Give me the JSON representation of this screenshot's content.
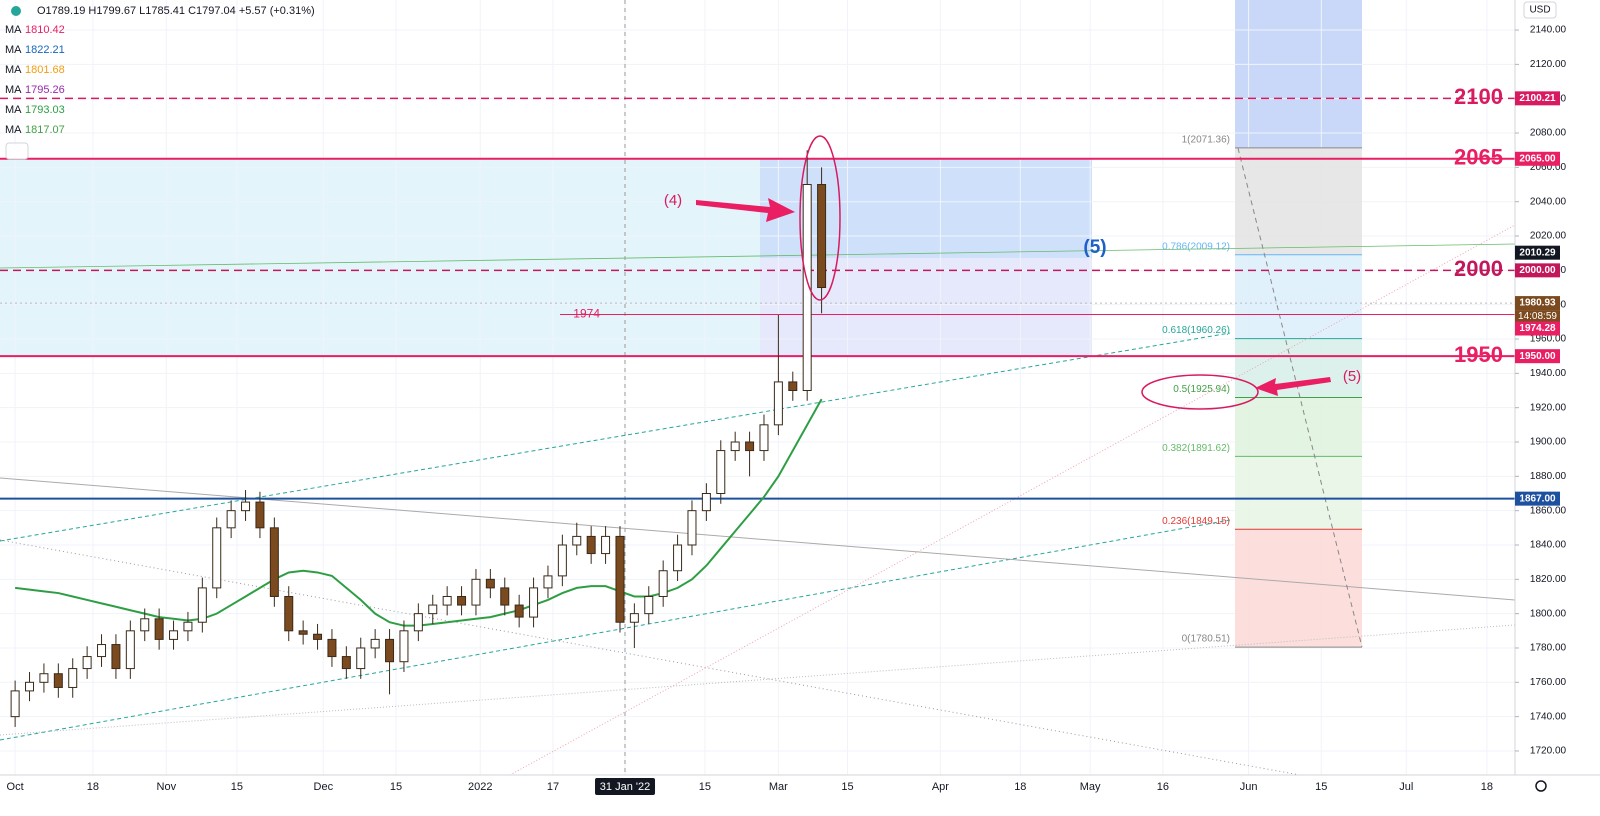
{
  "header": {
    "ohlc": "O1789.19 H1799.67 L1785.41 C1797.04 +5.57 (+0.31%)",
    "ma": [
      {
        "name": "MA",
        "value": 1810.42,
        "color": "#e91e63"
      },
      {
        "name": "MA",
        "value": 1822.21,
        "color": "#1565c0"
      },
      {
        "name": "MA",
        "value": 1801.68,
        "color": "#f39c12"
      },
      {
        "name": "MA",
        "value": 1795.26,
        "color": "#9c27b0"
      },
      {
        "name": "MA",
        "value": 1793.03,
        "color": "#2e9e44"
      },
      {
        "name": "MA",
        "value": 1817.07,
        "color": "#43a047"
      }
    ],
    "currency": "USD"
  },
  "chart_data": {
    "type": "candlestick",
    "x": [
      0,
      2,
      4,
      6,
      8,
      10,
      12,
      14,
      16,
      18,
      20,
      22,
      24,
      26,
      28,
      30,
      32,
      34,
      36,
      38,
      40,
      42,
      44,
      46,
      48,
      50,
      52,
      54,
      56,
      58,
      60,
      62,
      64,
      66,
      68,
      70,
      72,
      74,
      76,
      78,
      80,
      82,
      84,
      86,
      88,
      90,
      92,
      94,
      96,
      98,
      100,
      102,
      104,
      106,
      108,
      110,
      112
    ],
    "open": [
      1740,
      1755,
      1760,
      1765,
      1757,
      1768,
      1775,
      1782,
      1768,
      1790,
      1797,
      1785,
      1790,
      1795,
      1815,
      1850,
      1860,
      1865,
      1850,
      1810,
      1790,
      1788,
      1785,
      1775,
      1768,
      1780,
      1785,
      1772,
      1790,
      1800,
      1805,
      1810,
      1805,
      1820,
      1815,
      1805,
      1798,
      1815,
      1822,
      1840,
      1845,
      1835,
      1845,
      1795,
      1800,
      1810,
      1825,
      1840,
      1860,
      1870,
      1895,
      1900,
      1895,
      1910,
      1935,
      1930,
      2050
    ],
    "high": [
      1761,
      1766,
      1771,
      1771,
      1774,
      1781,
      1788,
      1788,
      1796,
      1803,
      1803,
      1796,
      1801,
      1821,
      1856,
      1866,
      1872,
      1871,
      1856,
      1816,
      1796,
      1794,
      1791,
      1781,
      1786,
      1791,
      1791,
      1796,
      1806,
      1811,
      1816,
      1816,
      1826,
      1826,
      1821,
      1811,
      1821,
      1828,
      1846,
      1853,
      1851,
      1851,
      1851,
      1806,
      1816,
      1831,
      1846,
      1866,
      1876,
      1901,
      1906,
      1906,
      1916,
      1974,
      1941,
      2070,
      2060
    ],
    "low": [
      1734,
      1749,
      1754,
      1751,
      1751,
      1762,
      1769,
      1762,
      1762,
      1784,
      1779,
      1779,
      1784,
      1789,
      1809,
      1844,
      1854,
      1844,
      1804,
      1784,
      1782,
      1779,
      1769,
      1762,
      1762,
      1774,
      1753,
      1766,
      1784,
      1794,
      1799,
      1799,
      1799,
      1809,
      1799,
      1792,
      1792,
      1809,
      1816,
      1834,
      1829,
      1829,
      1789,
      1780,
      1794,
      1804,
      1819,
      1834,
      1854,
      1864,
      1889,
      1880,
      1889,
      1904,
      1924,
      1924,
      1975
    ],
    "close": [
      1755,
      1760,
      1765,
      1757,
      1768,
      1775,
      1782,
      1768,
      1790,
      1797,
      1785,
      1790,
      1795,
      1815,
      1850,
      1860,
      1865,
      1850,
      1810,
      1790,
      1788,
      1785,
      1775,
      1768,
      1780,
      1785,
      1772,
      1790,
      1800,
      1805,
      1810,
      1805,
      1820,
      1815,
      1805,
      1798,
      1815,
      1822,
      1840,
      1845,
      1835,
      1845,
      1795,
      1800,
      1810,
      1825,
      1840,
      1860,
      1870,
      1895,
      1900,
      1895,
      1910,
      1935,
      1930,
      2050,
      1990
    ],
    "color_up": "#ffffff",
    "color_down": "#7b4a1e",
    "ma_series": [
      {
        "color": "#2e9e44",
        "values": [
          1815,
          1814,
          1813,
          1812,
          1810,
          1808,
          1806,
          1804,
          1802,
          1800,
          1798,
          1797,
          1796,
          1797,
          1800,
          1805,
          1810,
          1815,
          1820,
          1824,
          1825,
          1824,
          1822,
          1815,
          1808,
          1800,
          1795,
          1793,
          1793,
          1794,
          1795,
          1796,
          1797,
          1798,
          1800,
          1802,
          1805,
          1808,
          1812,
          1815,
          1816,
          1816,
          1813,
          1810,
          1810,
          1812,
          1815,
          1820,
          1828,
          1838,
          1848,
          1858,
          1868,
          1880,
          1895,
          1910,
          1925
        ]
      }
    ],
    "xlim": [
      -2.1,
      208.3
    ],
    "xticks": [
      {
        "value": 0,
        "label": "Oct"
      },
      {
        "value": 10.8,
        "label": "18"
      },
      {
        "value": 21,
        "label": "Nov"
      },
      {
        "value": 30.8,
        "label": "15"
      },
      {
        "value": 42.8,
        "label": "Dec"
      },
      {
        "value": 52.9,
        "label": "15"
      },
      {
        "value": 64.6,
        "label": "2022"
      },
      {
        "value": 74.7,
        "label": "17"
      },
      {
        "value": 84.7,
        "label": "31 Jan '22"
      },
      {
        "value": 95.8,
        "label": "15"
      },
      {
        "value": 106,
        "label": "Mar"
      },
      {
        "value": 115.6,
        "label": "15"
      },
      {
        "value": 128.5,
        "label": "Apr"
      },
      {
        "value": 139.6,
        "label": "18"
      },
      {
        "value": 149.3,
        "label": "May"
      },
      {
        "value": 159.4,
        "label": "16"
      },
      {
        "value": 171.3,
        "label": "Jun"
      },
      {
        "value": 181.4,
        "label": "15"
      },
      {
        "value": 193.2,
        "label": "Jul"
      },
      {
        "value": 204.4,
        "label": "18"
      }
    ],
    "ylim": [
      1706,
      2157.5
    ],
    "yticks": [
      {
        "value": 2140,
        "label": "2140.00"
      },
      {
        "value": 2120,
        "label": "2120.00"
      },
      {
        "value": 2100,
        "label": "2100.00"
      },
      {
        "value": 2080,
        "label": "2080.00"
      },
      {
        "value": 2060,
        "label": "2060.00"
      },
      {
        "value": 2040,
        "label": "2040.00"
      },
      {
        "value": 2020,
        "label": "2020.00"
      },
      {
        "value": 2000,
        "label": "2000.00"
      },
      {
        "value": 1980,
        "label": "1980.00"
      },
      {
        "value": 1960,
        "label": "1960.00"
      },
      {
        "value": 1940,
        "label": "1940.00"
      },
      {
        "value": 1920,
        "label": "1920.00"
      },
      {
        "value": 1900,
        "label": "1900.00"
      },
      {
        "value": 1880,
        "label": "1880.00"
      },
      {
        "value": 1860,
        "label": "1860.00"
      },
      {
        "value": 1840,
        "label": "1840.00"
      },
      {
        "value": 1820,
        "label": "1820.00"
      },
      {
        "value": 1800,
        "label": "1800.00"
      },
      {
        "value": 1780,
        "label": "1780.00"
      },
      {
        "value": 1760,
        "label": "1760.00"
      },
      {
        "value": 1740,
        "label": "1740.00"
      },
      {
        "value": 1720,
        "label": "1720.00"
      }
    ],
    "grid": true,
    "levels": [
      {
        "value": 2100.21,
        "label": "2100",
        "price_label": "2100.21",
        "style": "dashed",
        "color": "#d81b60"
      },
      {
        "value": 2065,
        "label": "2065",
        "price_label": "2065.00",
        "style": "solid",
        "color": "#e91e63"
      },
      {
        "value": 2010.29,
        "price_label": "2010.29",
        "style": "none",
        "color": "#131722"
      },
      {
        "value": 2000,
        "label": "2000",
        "price_label": "2000.00",
        "style": "dashed",
        "color": "#c2185b"
      },
      {
        "value": 1980.93,
        "price_label": "1980.93",
        "time_label": "14:08:59",
        "style": "dotted",
        "color": "#7b4a1e"
      },
      {
        "value": 1974.28,
        "label": "1974",
        "price_label": "1974.28",
        "style": "thin",
        "color": "#e91e63"
      },
      {
        "value": 1950,
        "label": "1950",
        "price_label": "1950.00",
        "style": "solid",
        "color": "#e91e63"
      },
      {
        "value": 1867,
        "price_label": "1867.00",
        "style": "solid",
        "color": "#1e50a0"
      }
    ],
    "fib": [
      {
        "value": 2071.36,
        "label": "1(2071.36)",
        "color": "#888888",
        "fill": "#e3e3e3"
      },
      {
        "value": 2009.12,
        "label": "0.786(2009.12)",
        "color": "#64b5f6",
        "fill": "#dceefb"
      },
      {
        "value": 1960.26,
        "label": "0.618(1960.26)",
        "color": "#26a69a",
        "fill": "#d6efe9"
      },
      {
        "value": 1925.94,
        "label": "0.5(1925.94)",
        "color": "#43a047",
        "fill": "#def2de"
      },
      {
        "value": 1891.62,
        "label": "0.382(1891.62)",
        "color": "#66bb6a",
        "fill": "#e6f5e4"
      },
      {
        "value": 1849.15,
        "label": "0.236(1849.15)",
        "color": "#e53935",
        "fill": "#fbd9d7"
      },
      {
        "value": 1780.51,
        "label": "0(1780.51)",
        "color": "#888888",
        "fill": "none"
      }
    ],
    "annotations": [
      "(4)",
      "(5)",
      "(5)"
    ]
  }
}
